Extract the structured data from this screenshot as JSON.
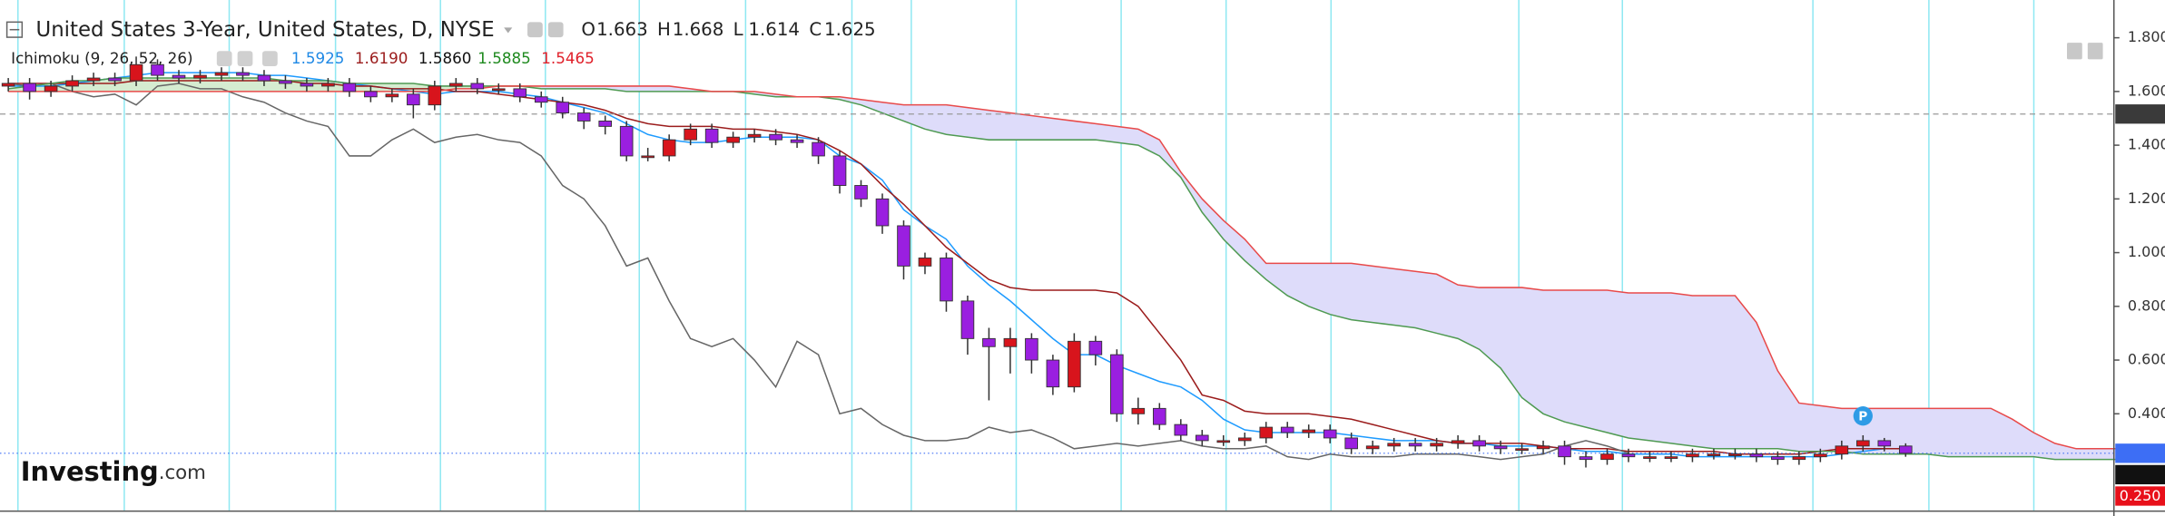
{
  "chart_data": {
    "type": "candlestick",
    "title": "United States 3-Year, United States, D, NYSE",
    "ohlc_legend": [
      {
        "label": "O",
        "value": 1.663
      },
      {
        "label": "H",
        "value": 1.668
      },
      {
        "label": "L",
        "value": 1.614
      },
      {
        "label": "C",
        "value": 1.625
      }
    ],
    "indicator": "Ichimoku (9, 26, 52, 26)",
    "up_color": "#d8141c",
    "down_color": "#9a1fe0",
    "open": [
      1.62,
      1.63,
      1.6,
      1.62,
      1.64,
      1.65,
      1.64,
      1.7,
      1.66,
      1.65,
      1.66,
      1.67,
      1.66,
      1.64,
      1.63,
      1.62,
      1.63,
      1.6,
      1.58,
      1.59,
      1.55,
      1.62,
      1.63,
      1.61,
      1.61,
      1.58,
      1.56,
      1.52,
      1.49,
      1.47,
      1.36,
      1.36,
      1.42,
      1.46,
      1.41,
      1.43,
      1.44,
      1.42,
      1.41,
      1.36,
      1.25,
      1.2,
      1.1,
      0.95,
      0.98,
      0.82,
      0.68,
      0.65,
      0.68,
      0.6,
      0.5,
      0.67,
      0.62,
      0.4,
      0.42,
      0.36,
      0.32,
      0.3,
      0.3,
      0.31,
      0.35,
      0.33,
      0.34,
      0.31,
      0.27,
      0.28,
      0.29,
      0.28,
      0.29,
      0.3,
      0.28,
      0.27,
      0.27,
      0.28,
      0.24,
      0.23,
      0.25,
      0.24,
      0.24,
      0.24,
      0.25,
      0.25,
      0.25,
      0.24,
      0.23,
      0.24,
      0.25,
      0.28,
      0.3,
      0.28,
      null,
      null,
      null,
      null,
      null,
      null,
      null,
      null,
      null,
      null
    ],
    "high": [
      1.65,
      1.65,
      1.64,
      1.66,
      1.67,
      1.67,
      1.73,
      1.72,
      1.68,
      1.68,
      1.69,
      1.69,
      1.68,
      1.66,
      1.65,
      1.65,
      1.65,
      1.62,
      1.61,
      1.61,
      1.64,
      1.65,
      1.65,
      1.63,
      1.63,
      1.6,
      1.58,
      1.54,
      1.51,
      1.49,
      1.39,
      1.44,
      1.48,
      1.48,
      1.45,
      1.46,
      1.46,
      1.44,
      1.43,
      1.38,
      1.27,
      1.22,
      1.12,
      1.0,
      1.0,
      0.84,
      0.72,
      0.72,
      0.7,
      0.62,
      0.7,
      0.69,
      0.64,
      0.46,
      0.44,
      0.38,
      0.34,
      0.32,
      0.33,
      0.37,
      0.37,
      0.36,
      0.36,
      0.33,
      0.3,
      0.31,
      0.31,
      0.31,
      0.32,
      0.32,
      0.3,
      0.29,
      0.3,
      0.3,
      0.26,
      0.27,
      0.27,
      0.26,
      0.26,
      0.27,
      0.27,
      0.27,
      0.27,
      0.26,
      0.26,
      0.27,
      0.3,
      0.32,
      0.31,
      0.29,
      null,
      null,
      null,
      null,
      null,
      null,
      null,
      null,
      null,
      null
    ],
    "low": [
      1.6,
      1.57,
      1.58,
      1.6,
      1.62,
      1.62,
      1.62,
      1.64,
      1.63,
      1.63,
      1.64,
      1.64,
      1.62,
      1.61,
      1.6,
      1.6,
      1.58,
      1.56,
      1.56,
      1.5,
      1.53,
      1.6,
      1.59,
      1.59,
      1.56,
      1.54,
      1.5,
      1.46,
      1.44,
      1.34,
      1.34,
      1.34,
      1.4,
      1.39,
      1.39,
      1.41,
      1.4,
      1.39,
      1.33,
      1.22,
      1.17,
      1.07,
      0.9,
      0.92,
      0.78,
      0.62,
      0.45,
      0.55,
      0.55,
      0.47,
      0.48,
      0.58,
      0.37,
      0.36,
      0.34,
      0.3,
      0.28,
      0.28,
      0.28,
      0.29,
      0.31,
      0.31,
      0.29,
      0.25,
      0.25,
      0.26,
      0.26,
      0.26,
      0.27,
      0.26,
      0.25,
      0.25,
      0.25,
      0.21,
      0.2,
      0.21,
      0.22,
      0.22,
      0.22,
      0.22,
      0.23,
      0.23,
      0.22,
      0.21,
      0.21,
      0.22,
      0.23,
      0.26,
      0.26,
      0.24,
      null,
      null,
      null,
      null,
      null,
      null,
      null,
      null,
      null,
      null
    ],
    "close": [
      1.63,
      1.6,
      1.62,
      1.64,
      1.65,
      1.64,
      1.7,
      1.66,
      1.65,
      1.66,
      1.67,
      1.66,
      1.64,
      1.63,
      1.62,
      1.63,
      1.6,
      1.58,
      1.59,
      1.55,
      1.62,
      1.63,
      1.61,
      1.61,
      1.58,
      1.56,
      1.52,
      1.49,
      1.47,
      1.36,
      1.36,
      1.42,
      1.46,
      1.41,
      1.43,
      1.44,
      1.42,
      1.41,
      1.36,
      1.25,
      1.2,
      1.1,
      0.95,
      0.98,
      0.82,
      0.68,
      0.65,
      0.68,
      0.6,
      0.5,
      0.67,
      0.62,
      0.4,
      0.42,
      0.36,
      0.32,
      0.3,
      0.3,
      0.31,
      0.35,
      0.33,
      0.34,
      0.31,
      0.27,
      0.28,
      0.29,
      0.28,
      0.29,
      0.3,
      0.28,
      0.27,
      0.27,
      0.28,
      0.24,
      0.23,
      0.25,
      0.24,
      0.24,
      0.24,
      0.25,
      0.25,
      0.25,
      0.24,
      0.23,
      0.24,
      0.25,
      0.28,
      0.3,
      0.28,
      0.253,
      null,
      null,
      null,
      null,
      null,
      null,
      null,
      null,
      null,
      null
    ],
    "series": [
      {
        "color": "#1e9bff",
        "legend_color": "#1e88e5",
        "legend_value": 1.5925,
        "values": [
          1.62,
          1.62,
          1.62,
          1.63,
          1.64,
          1.65,
          1.66,
          1.67,
          1.67,
          1.67,
          1.67,
          1.67,
          1.66,
          1.66,
          1.65,
          1.64,
          1.63,
          1.62,
          1.61,
          1.6,
          1.59,
          1.6,
          1.6,
          1.6,
          1.59,
          1.58,
          1.56,
          1.54,
          1.52,
          1.48,
          1.44,
          1.42,
          1.41,
          1.41,
          1.42,
          1.43,
          1.43,
          1.43,
          1.42,
          1.36,
          1.33,
          1.27,
          1.16,
          1.1,
          1.05,
          0.95,
          0.88,
          0.82,
          0.75,
          0.68,
          0.62,
          0.62,
          0.58,
          0.55,
          0.52,
          0.5,
          0.45,
          0.38,
          0.34,
          0.33,
          0.33,
          0.33,
          0.33,
          0.32,
          0.31,
          0.3,
          0.3,
          0.3,
          0.29,
          0.29,
          0.28,
          0.28,
          0.28,
          0.27,
          0.26,
          0.26,
          0.25,
          0.25,
          0.25,
          0.24,
          0.24,
          0.24,
          0.24,
          0.24,
          0.24,
          0.24,
          0.25,
          0.26,
          0.27,
          0.27,
          null,
          null,
          null,
          null,
          null,
          null,
          null,
          null,
          null,
          null
        ]
      },
      {
        "color": "#9b1c1c",
        "legend_color": "#9b1c1c",
        "legend_value": {
          "value": 1.619,
          "label": "1.6190"
        },
        "values": [
          1.63,
          1.63,
          1.63,
          1.63,
          1.63,
          1.63,
          1.64,
          1.64,
          1.64,
          1.64,
          1.64,
          1.64,
          1.64,
          1.64,
          1.63,
          1.63,
          1.62,
          1.62,
          1.61,
          1.61,
          1.61,
          1.6,
          1.6,
          1.59,
          1.58,
          1.57,
          1.56,
          1.55,
          1.53,
          1.5,
          1.48,
          1.47,
          1.47,
          1.47,
          1.46,
          1.46,
          1.45,
          1.44,
          1.42,
          1.38,
          1.33,
          1.25,
          1.18,
          1.1,
          1.02,
          0.96,
          0.9,
          0.87,
          0.86,
          0.86,
          0.86,
          0.86,
          0.85,
          0.8,
          0.7,
          0.6,
          0.47,
          0.45,
          0.41,
          0.4,
          0.4,
          0.4,
          0.39,
          0.38,
          0.36,
          0.34,
          0.32,
          0.3,
          0.29,
          0.29,
          0.29,
          0.29,
          0.28,
          0.27,
          0.27,
          0.27,
          0.26,
          0.26,
          0.26,
          0.26,
          0.26,
          0.25,
          0.25,
          0.25,
          0.25,
          0.26,
          0.27,
          0.27,
          0.27,
          0.27,
          null,
          null,
          null,
          null,
          null,
          null,
          null,
          null,
          null,
          null
        ]
      },
      {
        "color": "#666666",
        "legend_color": "#111111",
        "legend_value": {
          "value": 1.586,
          "label": "1.5860"
        },
        "values": [
          1.63,
          1.62,
          1.63,
          1.6,
          1.58,
          1.59,
          1.55,
          1.62,
          1.63,
          1.61,
          1.61,
          1.58,
          1.56,
          1.52,
          1.49,
          1.47,
          1.36,
          1.36,
          1.42,
          1.46,
          1.41,
          1.43,
          1.44,
          1.42,
          1.41,
          1.36,
          1.25,
          1.2,
          1.1,
          0.95,
          0.98,
          0.82,
          0.68,
          0.65,
          0.68,
          0.6,
          0.5,
          0.67,
          0.62,
          0.4,
          0.42,
          0.36,
          0.32,
          0.3,
          0.3,
          0.31,
          0.35,
          0.33,
          0.34,
          0.31,
          0.27,
          0.28,
          0.29,
          0.28,
          0.29,
          0.3,
          0.28,
          0.27,
          0.27,
          0.28,
          0.24,
          0.23,
          0.25,
          0.24,
          0.24,
          0.24,
          0.25,
          0.25,
          0.25,
          0.24,
          0.23,
          0.24,
          0.25,
          0.28,
          0.3,
          0.28,
          0.253,
          null,
          null,
          null,
          null,
          null,
          null,
          null,
          null,
          null,
          null,
          null,
          null,
          null,
          null,
          null,
          null,
          null,
          null,
          null,
          null,
          null,
          null,
          null
        ]
      },
      {
        "color": "#4f9a52",
        "legend_color": "#1f8a1f",
        "legend_value": 1.5885,
        "values": [
          1.61,
          1.62,
          1.63,
          1.64,
          1.64,
          1.65,
          1.65,
          1.65,
          1.65,
          1.65,
          1.65,
          1.65,
          1.65,
          1.64,
          1.64,
          1.64,
          1.63,
          1.63,
          1.63,
          1.63,
          1.62,
          1.62,
          1.62,
          1.62,
          1.62,
          1.61,
          1.61,
          1.61,
          1.61,
          1.6,
          1.6,
          1.6,
          1.6,
          1.6,
          1.6,
          1.59,
          1.58,
          1.58,
          1.58,
          1.57,
          1.55,
          1.52,
          1.49,
          1.46,
          1.44,
          1.43,
          1.42,
          1.42,
          1.42,
          1.42,
          1.42,
          1.42,
          1.41,
          1.4,
          1.36,
          1.28,
          1.15,
          1.05,
          0.97,
          0.9,
          0.84,
          0.8,
          0.77,
          0.75,
          0.74,
          0.73,
          0.72,
          0.7,
          0.68,
          0.64,
          0.57,
          0.46,
          0.4,
          0.37,
          0.35,
          0.33,
          0.31,
          0.3,
          0.29,
          0.28,
          0.27,
          0.27,
          0.27,
          0.27,
          0.26,
          0.26,
          0.26,
          0.25,
          0.25,
          0.25,
          0.25,
          0.24,
          0.24,
          0.24,
          0.24,
          0.24,
          0.23,
          0.23,
          0.23,
          0.23
        ]
      },
      {
        "color": "#e84a4a",
        "legend_color": "#e0202a",
        "legend_value": 1.5465,
        "values": [
          1.6,
          1.6,
          1.6,
          1.6,
          1.6,
          1.6,
          1.6,
          1.6,
          1.6,
          1.6,
          1.6,
          1.6,
          1.6,
          1.6,
          1.6,
          1.6,
          1.6,
          1.6,
          1.6,
          1.6,
          1.6,
          1.61,
          1.61,
          1.62,
          1.62,
          1.62,
          1.62,
          1.62,
          1.62,
          1.62,
          1.62,
          1.62,
          1.61,
          1.6,
          1.6,
          1.6,
          1.59,
          1.58,
          1.58,
          1.58,
          1.57,
          1.56,
          1.55,
          1.55,
          1.55,
          1.54,
          1.53,
          1.52,
          1.51,
          1.5,
          1.49,
          1.48,
          1.47,
          1.46,
          1.42,
          1.3,
          1.2,
          1.12,
          1.05,
          0.96,
          0.96,
          0.96,
          0.96,
          0.96,
          0.95,
          0.94,
          0.93,
          0.92,
          0.88,
          0.87,
          0.87,
          0.87,
          0.86,
          0.86,
          0.86,
          0.86,
          0.85,
          0.85,
          0.85,
          0.84,
          0.84,
          0.84,
          0.74,
          0.56,
          0.44,
          0.43,
          0.42,
          0.42,
          0.42,
          0.42,
          0.42,
          0.42,
          0.42,
          0.42,
          0.38,
          0.33,
          0.29,
          0.27,
          0.27,
          0.27
        ]
      }
    ],
    "cloud_colors": {
      "span_a_above": "#d5ecd0",
      "span_b_above": "#dedcfa"
    },
    "ylim": [
      0.04,
      1.92
    ],
    "yticks": [
      {
        "value": 0.4,
        "label": "0.400"
      },
      {
        "value": 0.6,
        "label": "0.600"
      },
      {
        "value": 0.8,
        "label": "0.800"
      },
      {
        "value": 1.0,
        "label": "1.000"
      },
      {
        "value": 1.2,
        "label": "1.200"
      },
      {
        "value": 1.4,
        "label": "1.400"
      },
      {
        "value": 1.6,
        "label": "1.600"
      },
      {
        "value": 1.8,
        "label": "1.800"
      }
    ],
    "price_labels": [
      {
        "value": 1.516,
        "color": "#3a3a3a",
        "line": "dashed"
      },
      {
        "value": 0.253,
        "color": "#3d6ef5",
        "line": "dotted"
      },
      {
        "value": 0.253,
        "color": "#111111"
      },
      {
        "value": 0.25,
        "label": "0.250",
        "color": "#e8101a"
      }
    ],
    "marker": "P",
    "logo": "Investing",
    "logo_suffix": ".com"
  }
}
